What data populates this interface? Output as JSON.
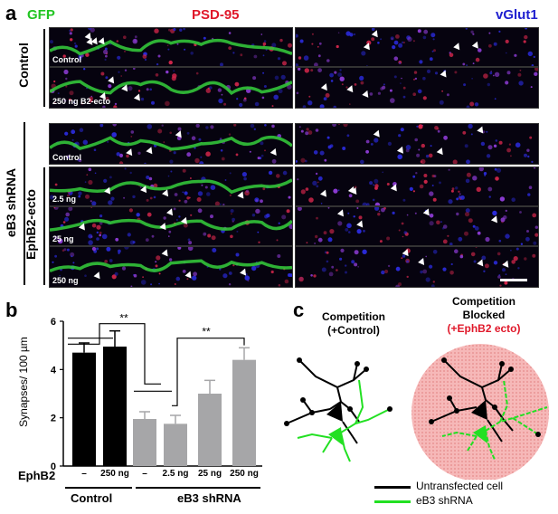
{
  "panel_a": {
    "letter": "a",
    "channels": {
      "gfp": "GFP",
      "psd95": "PSD-95",
      "vglut1": "vGlut1"
    },
    "groups": {
      "control": "Control",
      "eb3_shrna": "eB3 shRNA",
      "ephb2_ecto": "EphB2-ecto"
    },
    "labels": {
      "r1": "Control",
      "r2": "250 ng B2-ecto",
      "r3": "Control",
      "r4": "2.5 ng",
      "r5": "25 ng",
      "r6": "250 ng"
    }
  },
  "panel_b": {
    "letter": "b",
    "ylabel": "Synapses/ 100 µm",
    "row_label": "EphB2",
    "x_labels": [
      "–",
      "250 ng",
      "–",
      "2.5 ng",
      "25 ng",
      "250 ng"
    ],
    "group_labels": {
      "control": "Control",
      "shrna": "eB3 shRNA"
    },
    "sig1": "**",
    "sig2": "**"
  },
  "panel_c": {
    "letter": "c",
    "left_title_1": "Competition",
    "left_title_2": "(+Control)",
    "right_title_1": "Competition",
    "right_title_2": "Blocked",
    "right_title_3": "(+EphB2 ecto)",
    "legend_black": "Untransfected cell",
    "legend_green": "eB3 shRNA"
  },
  "chart_data": {
    "type": "bar",
    "categories": [
      "–",
      "250 ng",
      "–",
      "2.5 ng",
      "25 ng",
      "250 ng"
    ],
    "values": [
      4.7,
      4.95,
      1.95,
      1.75,
      3.0,
      4.4
    ],
    "errors": [
      0.4,
      0.65,
      0.3,
      0.35,
      0.55,
      0.5
    ],
    "bar_colors": [
      "#000000",
      "#000000",
      "#a6a6a8",
      "#a6a6a8",
      "#a6a6a8",
      "#a6a6a8"
    ],
    "ylabel": "Synapses/ 100 µm",
    "ylim": [
      0,
      6
    ],
    "yticks": [
      0,
      2,
      4,
      6
    ]
  }
}
